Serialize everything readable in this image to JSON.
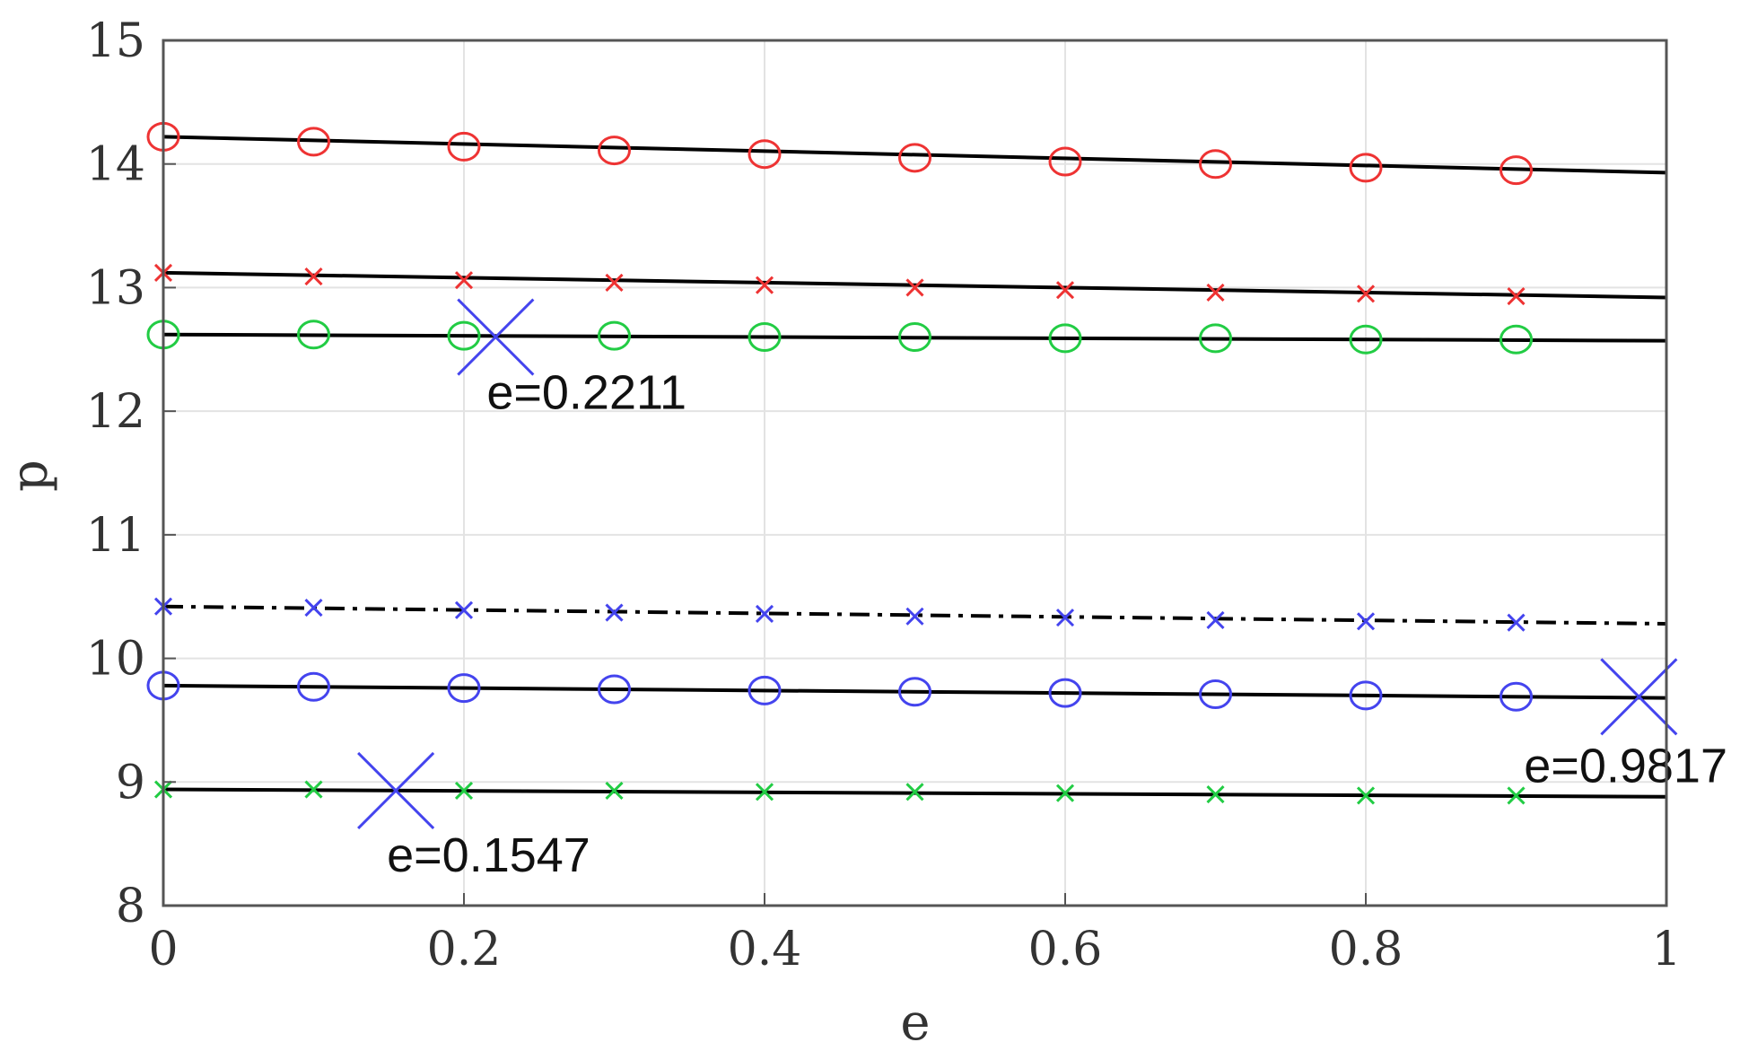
{
  "chart_data": {
    "type": "line",
    "title": "",
    "xlabel": "e",
    "ylabel": "p",
    "xlim": [
      0,
      1
    ],
    "ylim": [
      8,
      15
    ],
    "grid": true,
    "legend": "none",
    "x_ticks": [
      "0",
      "0.2",
      "0.4",
      "0.6",
      "0.8",
      "1"
    ],
    "y_ticks": [
      "8",
      "9",
      "10",
      "11",
      "12",
      "13",
      "14",
      "15"
    ],
    "series": [
      {
        "marker": "circle",
        "marker_color": "#ee3333",
        "line_style": "solid",
        "line_color": "#000000",
        "line_x": [
          0,
          1
        ],
        "line_y": [
          14.22,
          13.93
        ],
        "marker_x": [
          0,
          0.1,
          0.2,
          0.3,
          0.4,
          0.5,
          0.6,
          0.7,
          0.8,
          0.9
        ],
        "marker_y": [
          14.22,
          14.18,
          14.14,
          14.11,
          14.08,
          14.05,
          14.02,
          14.0,
          13.97,
          13.95
        ]
      },
      {
        "marker": "x",
        "marker_color": "#ee3333",
        "line_style": "solid",
        "line_color": "#000000",
        "line_x": [
          0,
          1
        ],
        "line_y": [
          13.12,
          12.92
        ],
        "marker_x": [
          0,
          0.1,
          0.2,
          0.3,
          0.4,
          0.5,
          0.6,
          0.7,
          0.8,
          0.9
        ],
        "marker_y": [
          13.12,
          13.09,
          13.06,
          13.04,
          13.02,
          13.0,
          12.98,
          12.96,
          12.95,
          12.93
        ]
      },
      {
        "marker": "circle",
        "marker_color": "#22cc44",
        "line_style": "solid",
        "line_color": "#000000",
        "line_x": [
          0,
          1
        ],
        "line_y": [
          12.62,
          12.57
        ],
        "marker_x": [
          0,
          0.1,
          0.2,
          0.3,
          0.4,
          0.5,
          0.6,
          0.7,
          0.8,
          0.9
        ],
        "marker_y": [
          12.62,
          12.62,
          12.61,
          12.61,
          12.6,
          12.6,
          12.59,
          12.59,
          12.58,
          12.58
        ]
      },
      {
        "marker": "x",
        "marker_color": "#4444ee",
        "line_style": "dashdot",
        "line_color": "#000000",
        "line_x": [
          0,
          1
        ],
        "line_y": [
          10.42,
          10.28
        ],
        "marker_x": [
          0,
          0.1,
          0.2,
          0.3,
          0.4,
          0.5,
          0.6,
          0.7,
          0.8,
          0.9
        ],
        "marker_y": [
          10.42,
          10.41,
          10.39,
          10.37,
          10.36,
          10.34,
          10.33,
          10.31,
          10.3,
          10.29
        ]
      },
      {
        "marker": "circle",
        "marker_color": "#4444ee",
        "line_style": "solid",
        "line_color": "#000000",
        "line_x": [
          0,
          1
        ],
        "line_y": [
          9.78,
          9.68
        ],
        "marker_x": [
          0,
          0.1,
          0.2,
          0.3,
          0.4,
          0.5,
          0.6,
          0.7,
          0.8,
          0.9
        ],
        "marker_y": [
          9.78,
          9.77,
          9.76,
          9.75,
          9.74,
          9.73,
          9.72,
          9.71,
          9.7,
          9.69
        ]
      },
      {
        "marker": "x",
        "marker_color": "#22cc44",
        "line_style": "solid",
        "line_color": "#000000",
        "line_x": [
          0,
          1
        ],
        "line_y": [
          8.94,
          8.88
        ],
        "marker_x": [
          0,
          0.1,
          0.2,
          0.3,
          0.4,
          0.5,
          0.6,
          0.7,
          0.8,
          0.9
        ],
        "marker_y": [
          8.94,
          8.94,
          8.93,
          8.93,
          8.92,
          8.92,
          8.91,
          8.9,
          8.89,
          8.89
        ]
      }
    ],
    "annotations": [
      {
        "label": "e=0.2211",
        "x": 0.2211,
        "y": 12.6,
        "marker": "x",
        "color": "#4444ee"
      },
      {
        "label": "e=0.1547",
        "x": 0.1547,
        "y": 8.93,
        "marker": "x",
        "color": "#4444ee"
      },
      {
        "label": "e=0.9817",
        "x": 0.9817,
        "y": 9.69,
        "marker": "x",
        "color": "#4444ee"
      }
    ]
  }
}
